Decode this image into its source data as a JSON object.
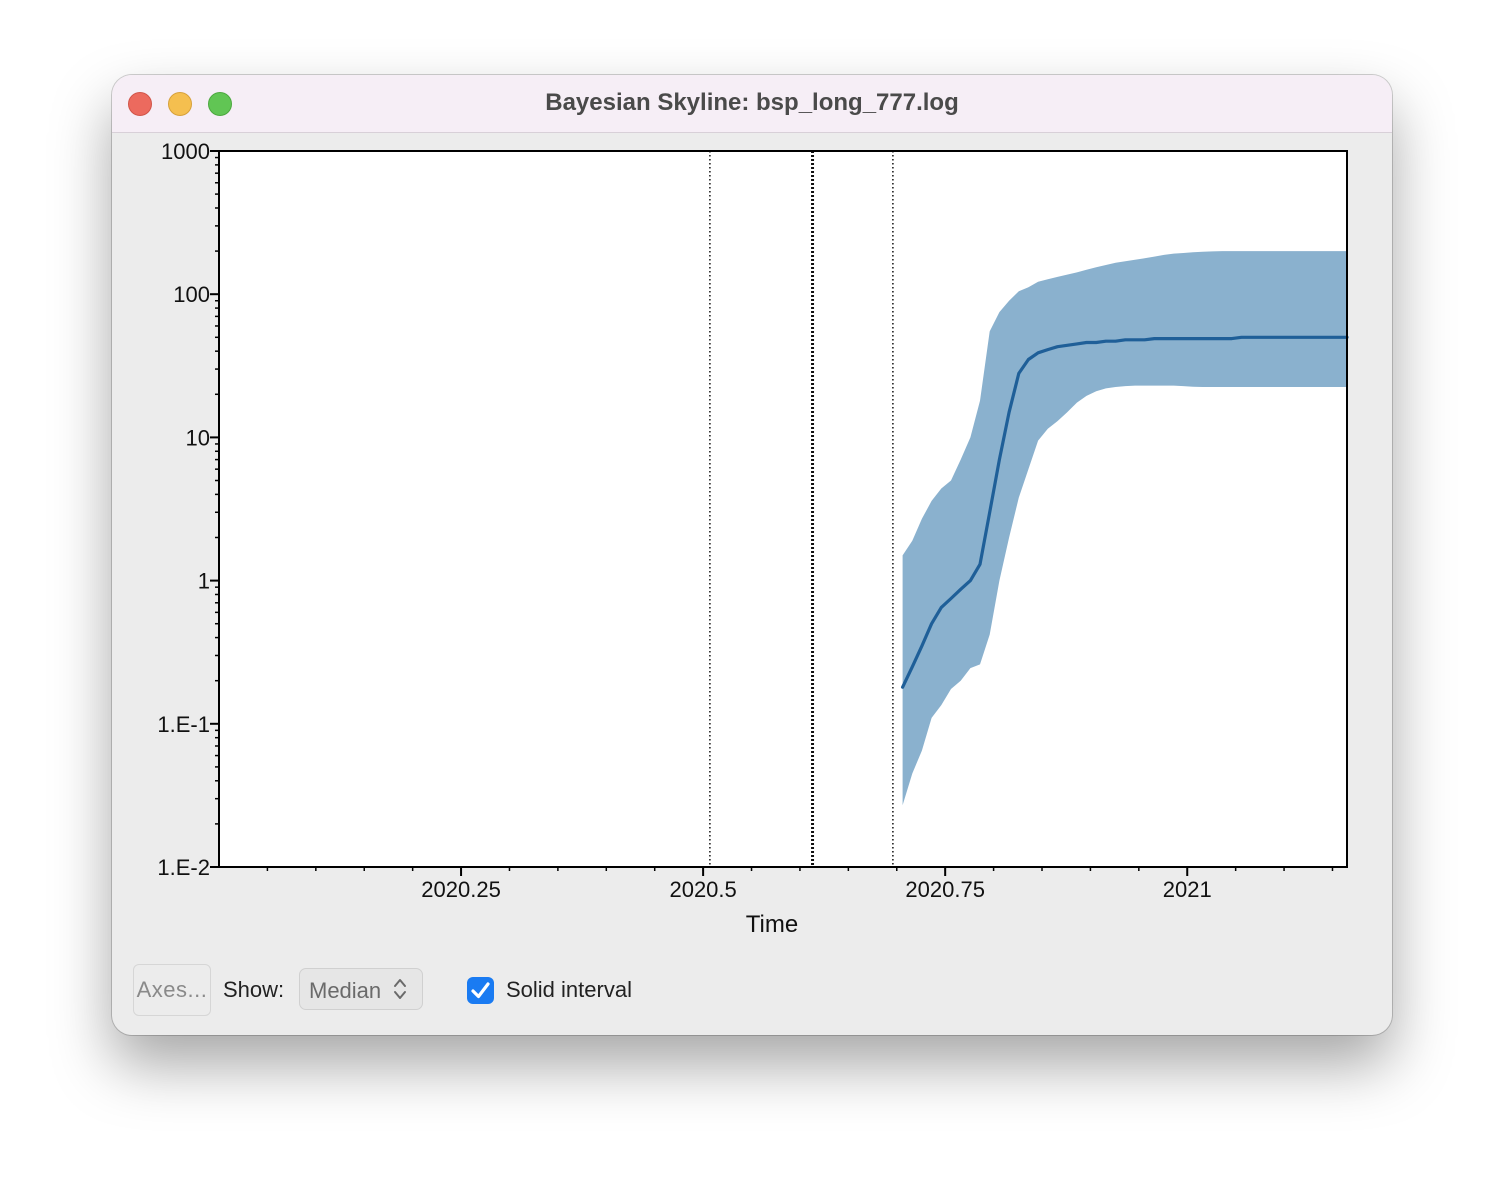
{
  "window": {
    "title": "Bayesian Skyline: bsp_long_777.log"
  },
  "controls": {
    "axes_label": "Axes...",
    "show_label": "Show:",
    "show_value": "Median",
    "solid_interval_label": "Solid interval",
    "solid_interval_checked": true
  },
  "chart_data": {
    "type": "area",
    "xlabel": "Time",
    "ylabel": "",
    "xlim": [
      2020.0,
      2021.165
    ],
    "ylim": [
      0.01,
      1000
    ],
    "ylog": true,
    "x_ticks": [
      {
        "value": 2020.25,
        "label": "2020.25"
      },
      {
        "value": 2020.5,
        "label": "2020.5"
      },
      {
        "value": 2020.75,
        "label": "2020.75"
      },
      {
        "value": 2021.0,
        "label": "2021"
      }
    ],
    "y_ticks": [
      {
        "value": 1000,
        "label": "1000"
      },
      {
        "value": 100,
        "label": "100"
      },
      {
        "value": 10,
        "label": "10"
      },
      {
        "value": 1,
        "label": "1"
      },
      {
        "value": 0.1,
        "label": "1.E-1"
      },
      {
        "value": 0.01,
        "label": "1.E-2"
      }
    ],
    "vlines": [
      {
        "x": 2020.507,
        "style": "thin-dotted"
      },
      {
        "x": 2020.613,
        "style": "thick-dotted"
      },
      {
        "x": 2020.696,
        "style": "thin-dotted"
      }
    ],
    "series": [
      {
        "name": "Median",
        "color": "#1f5f98",
        "x": [
          2020.706,
          2020.716,
          2020.726,
          2020.736,
          2020.746,
          2020.756,
          2020.766,
          2020.776,
          2020.786,
          2020.796,
          2020.806,
          2020.816,
          2020.826,
          2020.836,
          2020.846,
          2020.856,
          2020.866,
          2020.876,
          2020.886,
          2020.896,
          2020.906,
          2020.916,
          2020.926,
          2020.936,
          2020.946,
          2020.956,
          2020.966,
          2020.976,
          2020.986,
          2020.996,
          2021.006,
          2021.016,
          2021.026,
          2021.036,
          2021.046,
          2021.056,
          2021.066,
          2021.086,
          2021.106,
          2021.126,
          2021.146,
          2021.165
        ],
        "y": [
          0.18,
          0.25,
          0.35,
          0.5,
          0.65,
          0.75,
          0.87,
          1.0,
          1.3,
          3.0,
          7.0,
          15,
          28,
          35,
          39,
          41,
          43,
          44,
          45,
          46,
          46,
          47,
          47,
          48,
          48,
          48,
          49,
          49,
          49,
          49,
          49,
          49,
          49,
          49,
          49,
          50,
          50,
          50,
          50,
          50,
          50,
          50
        ]
      }
    ],
    "interval": {
      "color": "#8ab1ce",
      "x": [
        2020.706,
        2020.716,
        2020.726,
        2020.736,
        2020.746,
        2020.756,
        2020.766,
        2020.776,
        2020.786,
        2020.796,
        2020.806,
        2020.816,
        2020.826,
        2020.836,
        2020.846,
        2020.856,
        2020.866,
        2020.876,
        2020.886,
        2020.896,
        2020.906,
        2020.916,
        2020.926,
        2020.936,
        2020.946,
        2020.956,
        2020.966,
        2020.976,
        2020.986,
        2020.996,
        2021.006,
        2021.016,
        2021.026,
        2021.036,
        2021.046,
        2021.056,
        2021.066,
        2021.086,
        2021.106,
        2021.126,
        2021.146,
        2021.165
      ],
      "upper": [
        1.5,
        1.9,
        2.7,
        3.6,
        4.4,
        5.0,
        7.0,
        10,
        18,
        55,
        75,
        90,
        105,
        112,
        122,
        127,
        132,
        137,
        142,
        148,
        154,
        160,
        166,
        170,
        174,
        178,
        183,
        188,
        192,
        194,
        196,
        198,
        199,
        200,
        200,
        200,
        200,
        200,
        200,
        200,
        200,
        200
      ],
      "lower": [
        0.027,
        0.045,
        0.065,
        0.11,
        0.135,
        0.175,
        0.2,
        0.245,
        0.26,
        0.42,
        1.0,
        2.0,
        3.8,
        6.0,
        9.5,
        11.5,
        13.0,
        15.0,
        17.5,
        19.5,
        21.0,
        22.0,
        22.5,
        22.8,
        23.0,
        23.0,
        23.0,
        23.0,
        23.0,
        22.8,
        22.6,
        22.5,
        22.5,
        22.5,
        22.5,
        22.5,
        22.5,
        22.5,
        22.5,
        22.5,
        22.5,
        22.5
      ]
    }
  }
}
